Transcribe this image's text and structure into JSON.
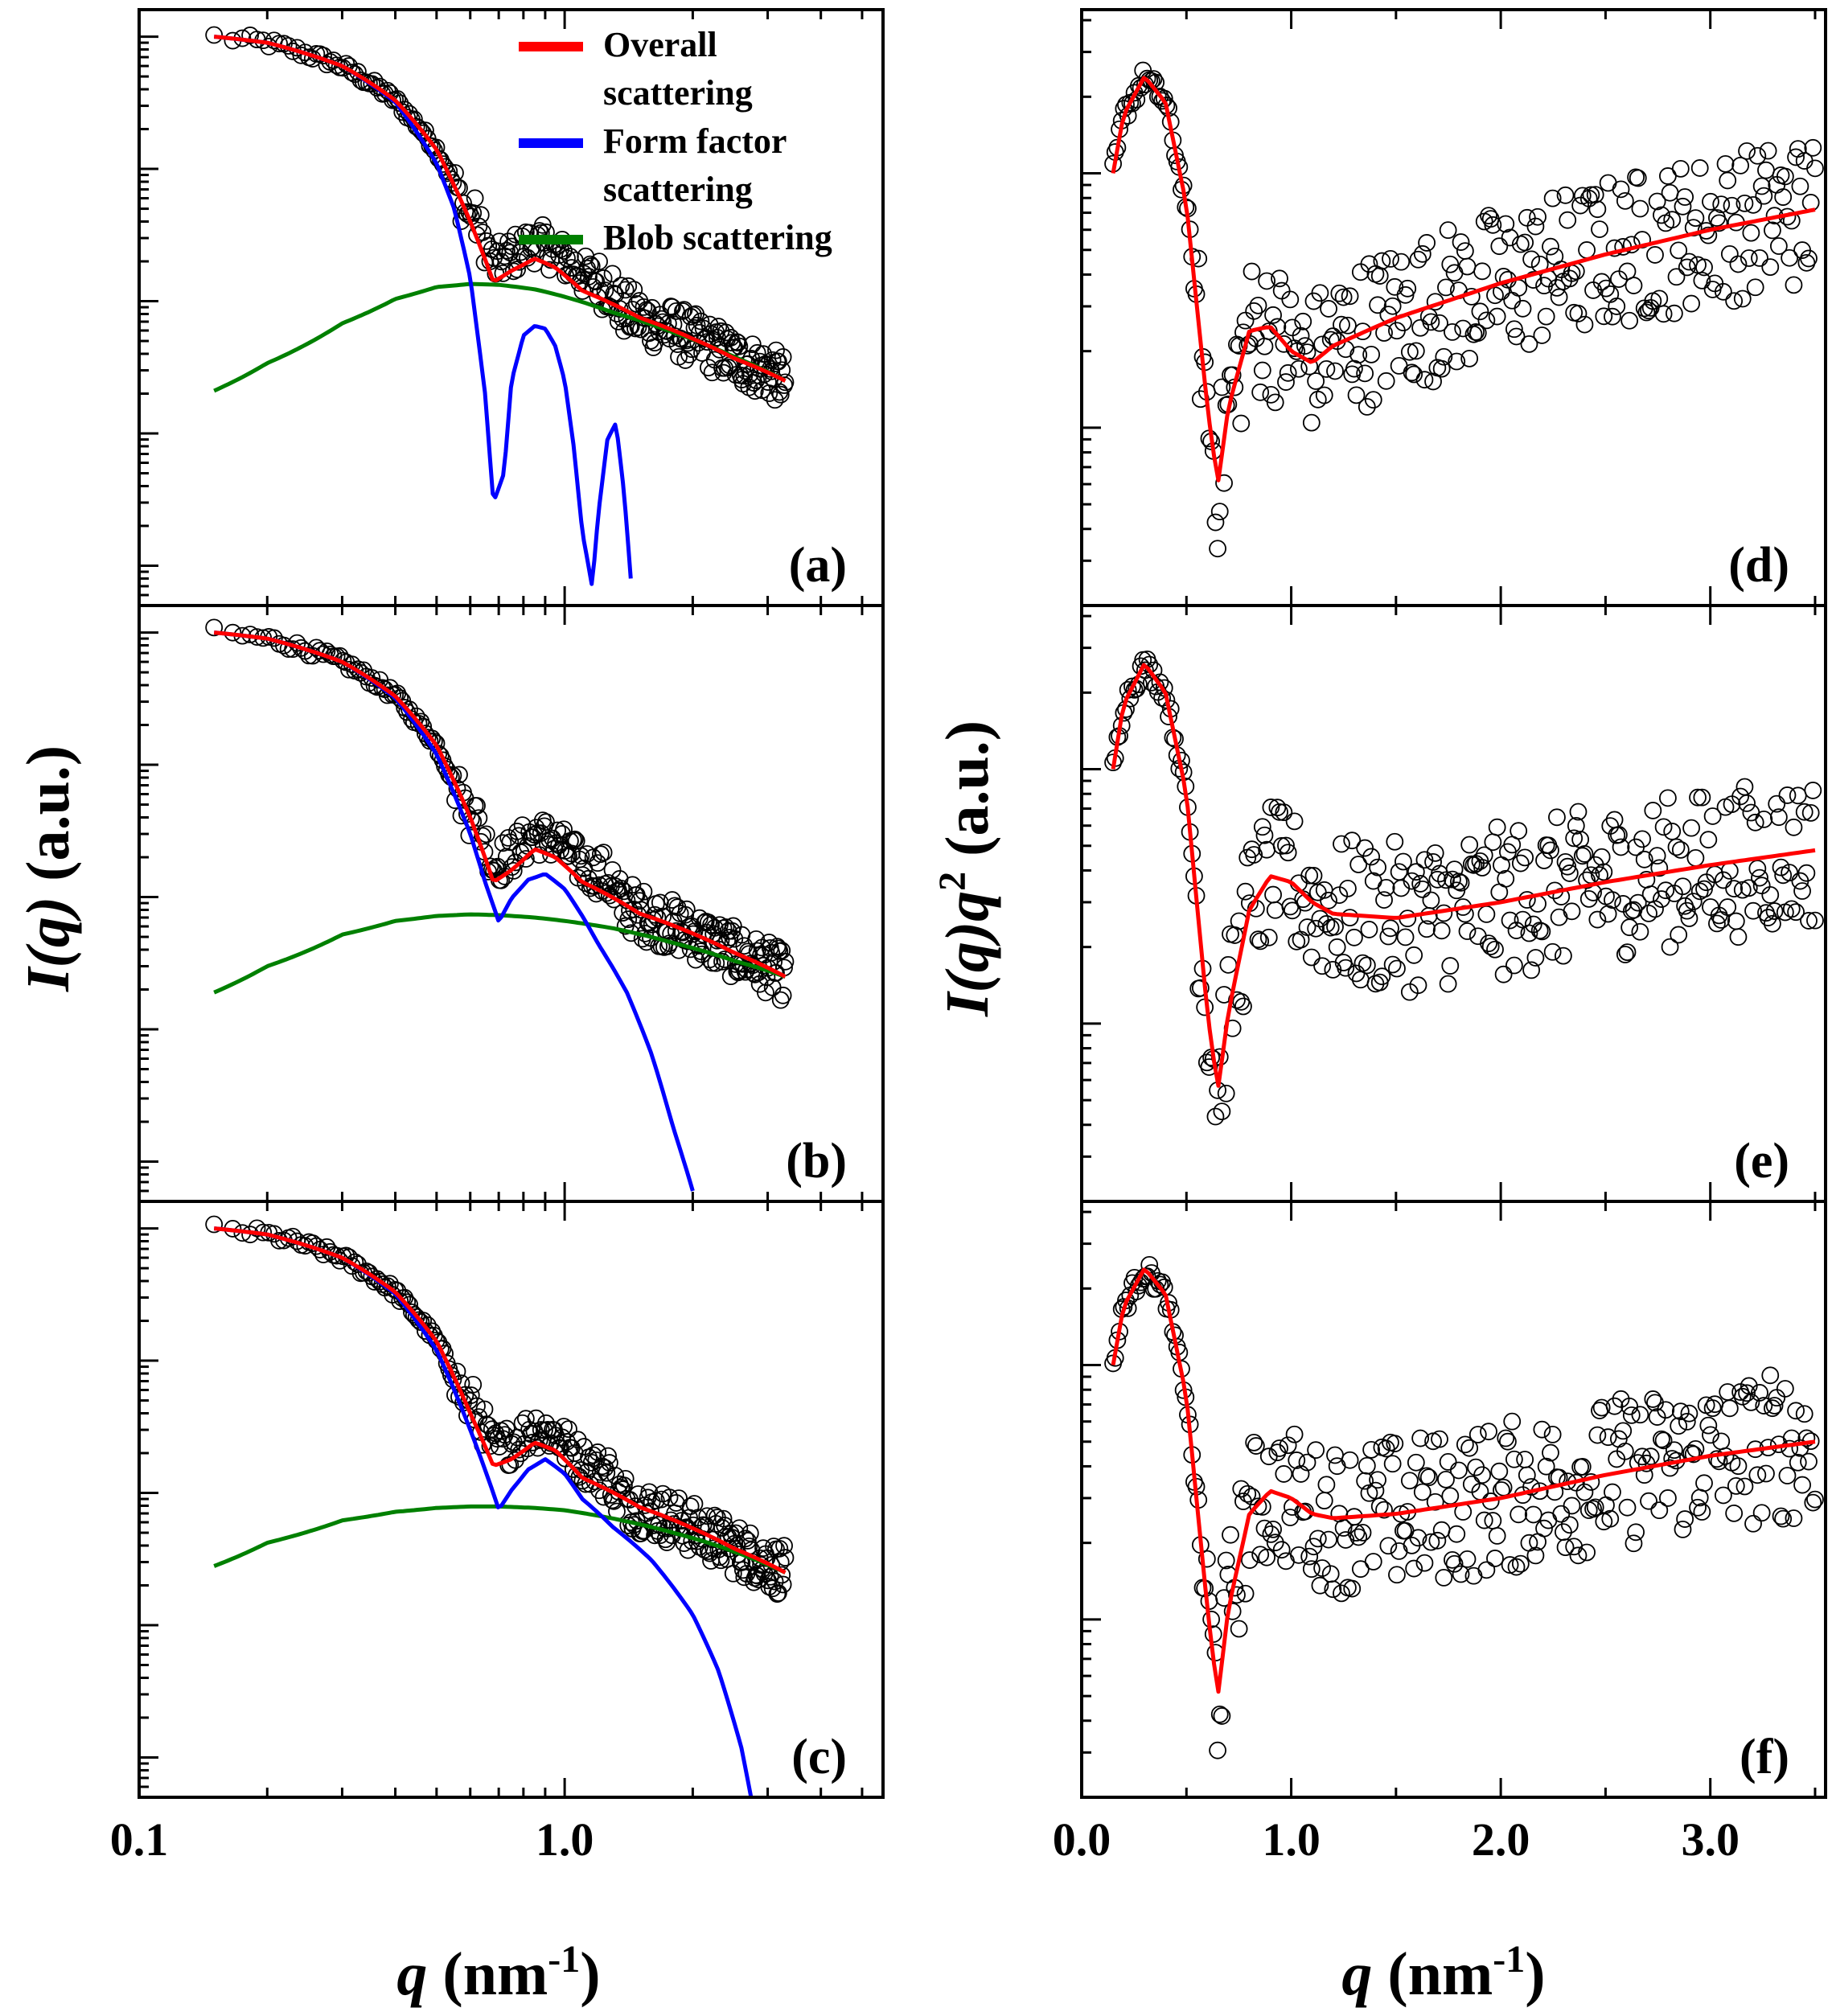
{
  "figure": {
    "y_title_left_base": "I",
    "y_title_left_paren": "(q)",
    "y_title_left_unit": " (a.u.)",
    "y_title_right_base": "I",
    "y_title_right_paren": "(q)q",
    "y_title_right_sup": "2",
    "y_title_right_unit": " (a.u.)",
    "x_title_left_var": "q",
    "x_title_left_unit": " (nm",
    "x_title_left_sup": "-1",
    "x_title_left_close": ")",
    "x_title_right_var": "q",
    "x_title_right_unit": " (nm",
    "x_title_right_sup": "-1",
    "x_title_right_close": ")",
    "legend": [
      {
        "label": [
          "Overall",
          "scattering"
        ],
        "color": "#ff0000"
      },
      {
        "label": [
          "Form factor",
          "scattering"
        ],
        "color": "#0000ff"
      },
      {
        "label": [
          "Blob scattering"
        ],
        "color": "#008000"
      }
    ],
    "colors": {
      "overall": "#ff0000",
      "form_factor": "#0000ff",
      "blob": "#008000",
      "data_marker": "#000000"
    }
  },
  "chart_data": [
    {
      "panel": "(a)",
      "type": "line",
      "scale": "log-log",
      "x_ticks": [
        "0.1",
        "1.0"
      ],
      "xlim": [
        0.1,
        5.6
      ],
      "series": [
        {
          "name": "Overall scattering",
          "x": [
            0.15,
            0.2,
            0.3,
            0.4,
            0.5,
            0.6,
            0.68,
            0.75,
            0.85,
            0.95,
            1.1,
            1.5,
            2.0,
            2.5,
            3.3
          ],
          "y": [
            1.0,
            0.9,
            0.6,
            0.33,
            0.14,
            0.04,
            0.014,
            0.017,
            0.021,
            0.018,
            0.012,
            0.0075,
            0.0052,
            0.0037,
            0.0025
          ]
        },
        {
          "name": "Form factor scattering",
          "x": [
            0.15,
            0.2,
            0.3,
            0.4,
            0.5,
            0.55,
            0.6,
            0.65,
            0.68,
            0.72,
            0.75,
            0.8,
            0.85,
            0.9,
            0.95,
            1.0,
            1.05,
            1.1,
            1.16,
            1.2,
            1.26,
            1.32,
            1.38,
            1.43
          ],
          "y": [
            1.0,
            0.9,
            0.6,
            0.32,
            0.11,
            0.05,
            0.015,
            0.002,
            0.0003,
            0.0005,
            0.0025,
            0.0055,
            0.0065,
            0.0062,
            0.0046,
            0.0025,
            0.0008,
            0.00018,
            7e-05,
            0.00025,
            0.0009,
            0.0012,
            0.00035,
            8e-05
          ]
        },
        {
          "name": "Blob scattering",
          "x": [
            0.15,
            0.2,
            0.3,
            0.4,
            0.5,
            0.6,
            0.7,
            0.85,
            1.0,
            1.3,
            1.8,
            2.5,
            3.3
          ],
          "y": [
            0.0021,
            0.0034,
            0.0068,
            0.0104,
            0.0128,
            0.0135,
            0.0133,
            0.0123,
            0.0108,
            0.0082,
            0.0058,
            0.0038,
            0.0025
          ]
        }
      ]
    },
    {
      "panel": "(b)",
      "type": "line",
      "scale": "log-log",
      "x_ticks": [
        "0.1",
        "1.0"
      ],
      "xlim": [
        0.1,
        5.6
      ],
      "series": [
        {
          "name": "Overall scattering",
          "x": [
            0.15,
            0.2,
            0.3,
            0.4,
            0.5,
            0.6,
            0.68,
            0.75,
            0.85,
            0.95,
            1.1,
            1.5,
            2.0,
            2.5,
            3.3
          ],
          "y": [
            1.0,
            0.9,
            0.6,
            0.33,
            0.14,
            0.04,
            0.013,
            0.016,
            0.023,
            0.02,
            0.013,
            0.0075,
            0.0053,
            0.0038,
            0.0025
          ]
        },
        {
          "name": "Form factor scattering",
          "x": [
            0.15,
            0.2,
            0.3,
            0.4,
            0.5,
            0.6,
            0.65,
            0.7,
            0.75,
            0.82,
            0.9,
            1.0,
            1.1,
            1.2,
            1.4,
            1.6,
            1.8,
            2.0
          ],
          "y": [
            1.0,
            0.9,
            0.6,
            0.32,
            0.12,
            0.03,
            0.013,
            0.0065,
            0.0098,
            0.0135,
            0.015,
            0.0115,
            0.0072,
            0.0044,
            0.0019,
            0.00065,
            0.00018,
            6e-05
          ]
        },
        {
          "name": "Blob scattering",
          "x": [
            0.15,
            0.2,
            0.3,
            0.4,
            0.5,
            0.6,
            0.7,
            0.85,
            1.0,
            1.3,
            1.8,
            2.5,
            3.3
          ],
          "y": [
            0.0019,
            0.003,
            0.0052,
            0.0066,
            0.0072,
            0.0074,
            0.0073,
            0.007,
            0.0066,
            0.0058,
            0.0045,
            0.0033,
            0.0025
          ]
        }
      ]
    },
    {
      "panel": "(c)",
      "type": "line",
      "scale": "log-log",
      "x_ticks": [
        "0.1",
        "1.0"
      ],
      "xlim": [
        0.1,
        5.6
      ],
      "series": [
        {
          "name": "Overall scattering",
          "x": [
            0.15,
            0.2,
            0.3,
            0.4,
            0.5,
            0.6,
            0.68,
            0.75,
            0.85,
            0.95,
            1.1,
            1.5,
            2.0,
            2.5,
            3.3
          ],
          "y": [
            1.0,
            0.9,
            0.6,
            0.33,
            0.14,
            0.04,
            0.016,
            0.018,
            0.024,
            0.021,
            0.013,
            0.0078,
            0.0054,
            0.0038,
            0.0025
          ]
        },
        {
          "name": "Form factor scattering",
          "x": [
            0.15,
            0.2,
            0.3,
            0.4,
            0.5,
            0.6,
            0.65,
            0.7,
            0.75,
            0.82,
            0.9,
            1.0,
            1.1,
            1.3,
            1.6,
            2.0,
            2.3,
            2.6,
            2.8
          ],
          "y": [
            1.0,
            0.9,
            0.6,
            0.32,
            0.12,
            0.03,
            0.015,
            0.0075,
            0.0105,
            0.015,
            0.018,
            0.014,
            0.009,
            0.0055,
            0.0031,
            0.0012,
            0.00045,
            0.00012,
            3.5e-05
          ]
        },
        {
          "name": "Blob scattering",
          "x": [
            0.15,
            0.2,
            0.3,
            0.4,
            0.5,
            0.6,
            0.7,
            0.85,
            1.0,
            1.3,
            1.8,
            2.5,
            3.3
          ],
          "y": [
            0.0028,
            0.0042,
            0.0062,
            0.0072,
            0.0077,
            0.0079,
            0.0079,
            0.0077,
            0.0074,
            0.0064,
            0.005,
            0.0036,
            0.0025
          ]
        }
      ]
    },
    {
      "panel": "(d)",
      "type": "line",
      "scale": "linear-log",
      "x_ticks": [
        "0.0",
        "1.0",
        "2.0",
        "3.0"
      ],
      "xlim": [
        0.0,
        3.55
      ],
      "series": [
        {
          "name": "Overall scattering",
          "x": [
            0.15,
            0.2,
            0.3,
            0.4,
            0.5,
            0.6,
            0.65,
            0.7,
            0.8,
            0.9,
            1.0,
            1.1,
            1.2,
            1.5,
            2.0,
            2.5,
            3.0,
            3.5
          ],
          "y": [
            1.0,
            1.7,
            2.4,
            1.9,
            0.75,
            0.12,
            0.06,
            0.12,
            0.24,
            0.25,
            0.2,
            0.18,
            0.21,
            0.27,
            0.37,
            0.48,
            0.6,
            0.72
          ]
        }
      ]
    },
    {
      "panel": "(e)",
      "type": "line",
      "scale": "linear-log",
      "x_ticks": [
        "0.0",
        "1.0",
        "2.0",
        "3.0"
      ],
      "xlim": [
        0.0,
        3.55
      ],
      "series": [
        {
          "name": "Overall scattering",
          "x": [
            0.15,
            0.2,
            0.3,
            0.4,
            0.5,
            0.6,
            0.65,
            0.7,
            0.8,
            0.9,
            1.0,
            1.1,
            1.2,
            1.5,
            2.0,
            2.5,
            3.0,
            3.5
          ],
          "y": [
            1.0,
            1.8,
            2.6,
            2.0,
            0.8,
            0.11,
            0.055,
            0.11,
            0.28,
            0.38,
            0.36,
            0.3,
            0.27,
            0.26,
            0.3,
            0.36,
            0.42,
            0.48
          ]
        }
      ]
    },
    {
      "panel": "(f)",
      "type": "line",
      "scale": "linear-log",
      "x_ticks": [
        "0.0",
        "1.0",
        "2.0",
        "3.0"
      ],
      "xlim": [
        0.0,
        3.55
      ],
      "series": [
        {
          "name": "Overall scattering",
          "x": [
            0.15,
            0.2,
            0.3,
            0.4,
            0.5,
            0.6,
            0.65,
            0.7,
            0.8,
            0.9,
            1.0,
            1.1,
            1.2,
            1.5,
            2.0,
            2.5,
            3.0,
            3.5
          ],
          "y": [
            1.0,
            1.7,
            2.4,
            1.9,
            0.75,
            0.11,
            0.05,
            0.11,
            0.26,
            0.32,
            0.3,
            0.26,
            0.25,
            0.26,
            0.3,
            0.37,
            0.44,
            0.5
          ]
        }
      ]
    }
  ]
}
